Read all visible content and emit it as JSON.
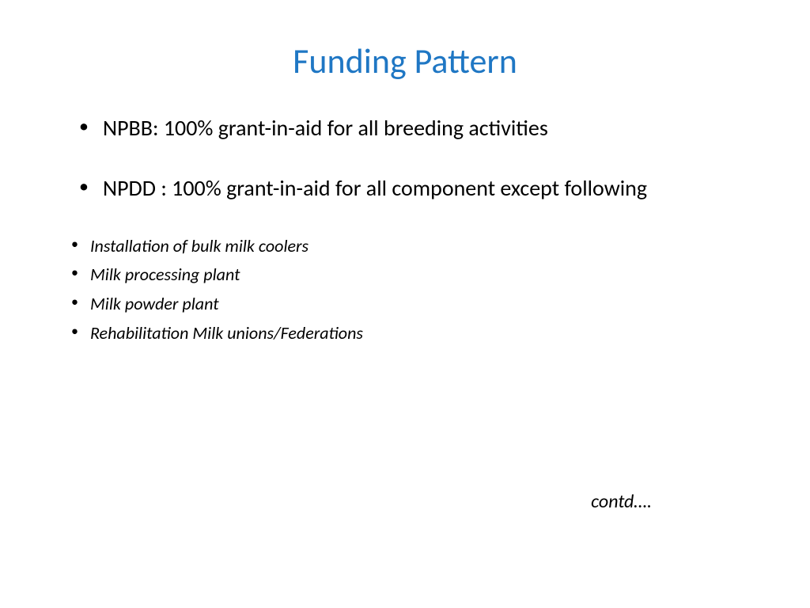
{
  "title": "Funding Pattern",
  "title_color": "#1f77c4",
  "title_fontsize": 44,
  "main_bullets": [
    "NPBB: 100% grant-in-aid for all breeding activities",
    "NPDD : 100% grant-in-aid for all component except following"
  ],
  "main_bullet_fontsize": 28,
  "sub_bullets": [
    "Installation of bulk milk coolers",
    "Milk processing plant",
    "Milk powder plant",
    "Rehabilitation Milk unions/Federations"
  ],
  "sub_bullet_fontsize": 22,
  "sub_bullet_italic": true,
  "contd_text": "contd….",
  "contd_fontsize": 24,
  "background_color": "#ffffff",
  "text_color": "#000000"
}
